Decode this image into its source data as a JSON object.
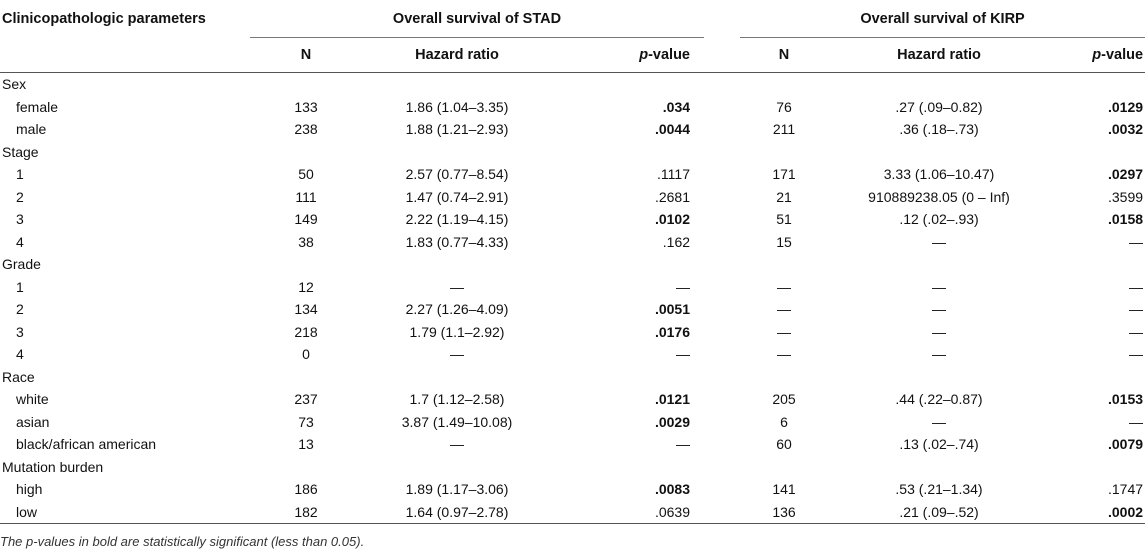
{
  "table": {
    "param_header": "Clinicopathologic parameters",
    "group1_header": "Overall survival of STAD",
    "group2_header": "Overall survival of KIRP",
    "col_n": "N",
    "col_hr": "Hazard ratio",
    "col_p_italic": "p",
    "col_p_suffix": "-value",
    "rows": [
      {
        "label": "Sex",
        "group": true
      },
      {
        "label": "female",
        "n1": "133",
        "hr1": "1.86 (1.04–3.35)",
        "p1": ".034",
        "p1b": true,
        "n2": "76",
        "hr2": ".27 (.09–0.82)",
        "p2": ".0129",
        "p2b": true
      },
      {
        "label": "male",
        "n1": "238",
        "hr1": "1.88 (1.21–2.93)",
        "p1": ".0044",
        "p1b": true,
        "n2": "211",
        "hr2": ".36 (.18–.73)",
        "p2": ".0032",
        "p2b": true
      },
      {
        "label": "Stage",
        "group": true
      },
      {
        "label": "1",
        "n1": "50",
        "hr1": "2.57 (0.77–8.54)",
        "p1": ".1117",
        "p1b": false,
        "n2": "171",
        "hr2": "3.33 (1.06–10.47)",
        "p2": ".0297",
        "p2b": true
      },
      {
        "label": "2",
        "n1": "111",
        "hr1": "1.47 (0.74–2.91)",
        "p1": ".2681",
        "p1b": false,
        "n2": "21",
        "hr2": "910889238.05 (0 – Inf)",
        "p2": ".3599",
        "p2b": false
      },
      {
        "label": "3",
        "n1": "149",
        "hr1": "2.22 (1.19–4.15)",
        "p1": ".0102",
        "p1b": true,
        "n2": "51",
        "hr2": ".12 (.02–.93)",
        "p2": ".0158",
        "p2b": true
      },
      {
        "label": "4",
        "n1": "38",
        "hr1": "1.83 (0.77–4.33)",
        "p1": ".162",
        "p1b": false,
        "n2": "15",
        "hr2": "—",
        "p2": "—",
        "p2b": false
      },
      {
        "label": "Grade",
        "group": true
      },
      {
        "label": "1",
        "n1": "12",
        "hr1": "—",
        "p1": "—",
        "p1b": false,
        "n2": "—",
        "hr2": "—",
        "p2": "—",
        "p2b": false
      },
      {
        "label": "2",
        "n1": "134",
        "hr1": "2.27 (1.26–4.09)",
        "p1": ".0051",
        "p1b": true,
        "n2": "—",
        "hr2": "—",
        "p2": "—",
        "p2b": false
      },
      {
        "label": "3",
        "n1": "218",
        "hr1": "1.79 (1.1–2.92)",
        "p1": ".0176",
        "p1b": true,
        "n2": "—",
        "hr2": "—",
        "p2": "—",
        "p2b": false
      },
      {
        "label": "4",
        "n1": "0",
        "hr1": "—",
        "p1": "—",
        "p1b": false,
        "n2": "—",
        "hr2": "—",
        "p2": "—",
        "p2b": false
      },
      {
        "label": "Race",
        "group": true
      },
      {
        "label": "white",
        "n1": "237",
        "hr1": "1.7 (1.12–2.58)",
        "p1": ".0121",
        "p1b": true,
        "n2": "205",
        "hr2": ".44 (.22–0.87)",
        "p2": ".0153",
        "p2b": true
      },
      {
        "label": "asian",
        "n1": "73",
        "hr1": "3.87 (1.49–10.08)",
        "p1": ".0029",
        "p1b": true,
        "n2": "6",
        "hr2": "—",
        "p2": "—",
        "p2b": false
      },
      {
        "label": "black/african american",
        "n1": "13",
        "hr1": "—",
        "p1": "—",
        "p1b": false,
        "n2": "60",
        "hr2": ".13 (.02–.74)",
        "p2": ".0079",
        "p2b": true
      },
      {
        "label": "Mutation burden",
        "group": true
      },
      {
        "label": "high",
        "n1": "186",
        "hr1": "1.89 (1.17–3.06)",
        "p1": ".0083",
        "p1b": true,
        "n2": "141",
        "hr2": ".53 (.21–1.34)",
        "p2": ".1747",
        "p2b": false
      },
      {
        "label": "low",
        "n1": "182",
        "hr1": "1.64 (0.97–2.78)",
        "p1": ".0639",
        "p1b": false,
        "n2": "136",
        "hr2": ".21 (.09–.52)",
        "p2": ".0002",
        "p2b": true
      }
    ]
  },
  "footnote": "The p-values in bold are statistically significant (less than 0.05)."
}
